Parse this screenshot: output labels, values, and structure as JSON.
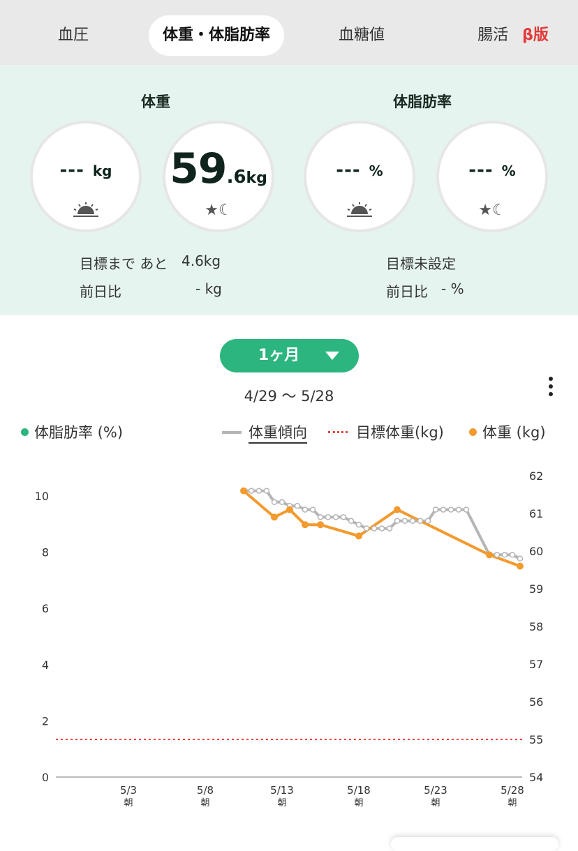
{
  "tabs": [
    {
      "label": "血圧"
    },
    {
      "label": "体重・体脂肪率"
    },
    {
      "label": "血糖値"
    },
    {
      "label": "腸活",
      "badge": "β版"
    }
  ],
  "summary": {
    "weight": {
      "title": "体重",
      "morning": {
        "value": "---",
        "unit": "kg",
        "icon": "sunrise-icon"
      },
      "evening": {
        "value_int": "59",
        "value_dec": ".6",
        "unit": "kg",
        "icon": "moon-star-icon"
      },
      "goal_label": "目標まで あと",
      "goal_value": "4.6kg",
      "diff_label": "前日比",
      "diff_value": "- kg"
    },
    "fat": {
      "title": "体脂肪率",
      "morning": {
        "value": "---",
        "unit": "%",
        "icon": "sunrise-icon"
      },
      "evening": {
        "value": "---",
        "unit": "%",
        "icon": "moon-star-icon"
      },
      "goal_label": "目標未設定",
      "diff_label": "前日比",
      "diff_value": "- %"
    }
  },
  "period": {
    "label": "1ヶ月",
    "range": "4/29 〜 5/28"
  },
  "legend": {
    "fat": "体脂肪率 (%)",
    "trend": "体重傾向",
    "target": "目標体重(kg)",
    "weight": "体重 (kg)"
  },
  "colors": {
    "accent": "#2db57f",
    "weight": "#f39a2e",
    "trend": "#b5b5b5",
    "target": "#e0493c"
  },
  "chart_data": {
    "type": "line",
    "x_unit": "day index from 4/29",
    "xticks": [
      {
        "day": 4,
        "label": "5/3",
        "sub": "朝"
      },
      {
        "day": 9,
        "label": "5/8",
        "sub": "朝"
      },
      {
        "day": 14,
        "label": "5/13",
        "sub": "朝"
      },
      {
        "day": 19,
        "label": "5/18",
        "sub": "朝"
      },
      {
        "day": 24,
        "label": "5/23",
        "sub": "朝"
      },
      {
        "day": 29,
        "label": "5/28",
        "sub": "朝"
      }
    ],
    "y_left": {
      "label": "体脂肪率 (%)",
      "ticks": [
        "0",
        "2",
        "4",
        "6",
        "8",
        "10"
      ],
      "range": [
        0,
        10.7
      ]
    },
    "y_right": {
      "label": "体重 (kg)",
      "ticks": [
        "54",
        "55",
        "56",
        "57",
        "58",
        "59",
        "60",
        "61",
        "62"
      ],
      "range": [
        54,
        62
      ]
    },
    "series": [
      {
        "name": "体重 (kg)",
        "axis": "right",
        "points": [
          [
            11,
            61.6
          ],
          [
            13,
            60.9
          ],
          [
            14,
            61.1
          ],
          [
            15,
            60.7
          ],
          [
            16,
            60.7
          ],
          [
            18.5,
            60.4
          ],
          [
            21,
            61.1
          ],
          [
            27,
            59.9
          ],
          [
            29,
            59.6
          ]
        ]
      },
      {
        "name": "体重傾向",
        "axis": "right",
        "points": [
          [
            11,
            61.6
          ],
          [
            11.5,
            61.6
          ],
          [
            12,
            61.6
          ],
          [
            12.5,
            61.6
          ],
          [
            13,
            61.3
          ],
          [
            13.5,
            61.3
          ],
          [
            14,
            61.2
          ],
          [
            14.5,
            61.2
          ],
          [
            15,
            61.1
          ],
          [
            15.5,
            61.1
          ],
          [
            16,
            60.9
          ],
          [
            16.5,
            60.9
          ],
          [
            17,
            60.9
          ],
          [
            17.5,
            60.9
          ],
          [
            18,
            60.8
          ],
          [
            18.5,
            60.7
          ],
          [
            19,
            60.6
          ],
          [
            19.5,
            60.6
          ],
          [
            20,
            60.6
          ],
          [
            20.5,
            60.6
          ],
          [
            21,
            60.8
          ],
          [
            21.5,
            60.8
          ],
          [
            22,
            60.8
          ],
          [
            22.5,
            60.8
          ],
          [
            23,
            60.8
          ],
          [
            23.5,
            61.1
          ],
          [
            24,
            61.1
          ],
          [
            24.5,
            61.1
          ],
          [
            25,
            61.1
          ],
          [
            25.5,
            61.1
          ],
          [
            27,
            59.9
          ],
          [
            27.5,
            59.9
          ],
          [
            28,
            59.9
          ],
          [
            28.5,
            59.9
          ],
          [
            29,
            59.8
          ]
        ]
      },
      {
        "name": "目標体重(kg)",
        "axis": "right",
        "value": 55.0
      },
      {
        "name": "体脂肪率 (%)",
        "axis": "left",
        "points": []
      }
    ]
  }
}
